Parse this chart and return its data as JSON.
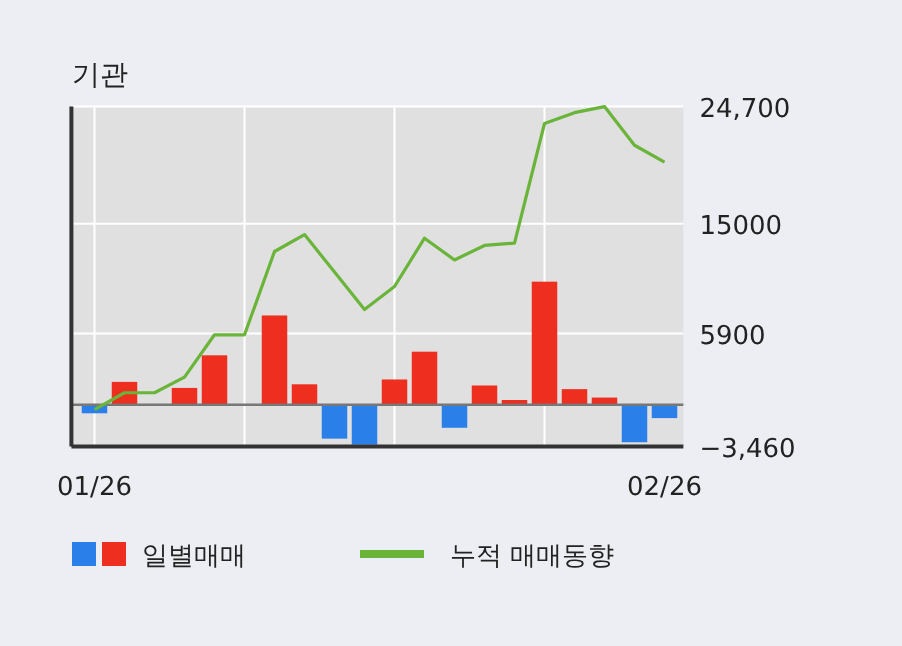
{
  "chart_data": {
    "type": "bar",
    "title": "기관",
    "categories": [
      "01/26",
      null,
      null,
      null,
      null,
      null,
      null,
      null,
      null,
      null,
      null,
      null,
      null,
      null,
      null,
      null,
      null,
      null,
      null,
      "02/26"
    ],
    "series": [
      {
        "name": "일별매매",
        "values": [
          -700,
          1900,
          0,
          1400,
          4100,
          0,
          7400,
          1700,
          -2800,
          -3300,
          2100,
          4400,
          -1900,
          1600,
          400,
          10200,
          1300,
          600,
          -3100,
          -1100
        ],
        "colors": [
          "#2a7fe8",
          "#ee2e1e",
          "#ee2e1e",
          "#ee2e1e",
          "#ee2e1e",
          "#ee2e1e",
          "#ee2e1e",
          "#ee2e1e",
          "#2a7fe8",
          "#2a7fe8",
          "#ee2e1e",
          "#ee2e1e",
          "#2a7fe8",
          "#ee2e1e",
          "#ee2e1e",
          "#ee2e1e",
          "#ee2e1e",
          "#ee2e1e",
          "#2a7fe8",
          "#2a7fe8"
        ]
      },
      {
        "type": "line",
        "name": "누적 매매동향",
        "color": "#6ab43a",
        "values": [
          -400,
          1000,
          1000,
          2300,
          5800,
          5800,
          12700,
          14100,
          11000,
          7900,
          9800,
          13800,
          12000,
          13200,
          13400,
          23300,
          24200,
          24700,
          21500,
          20100
        ]
      }
    ],
    "ylim": [
      -3460,
      24700
    ],
    "yticks": [
      {
        "value": 24700,
        "label": "24,700"
      },
      15000,
      5900,
      {
        "value": -3460,
        "label": "−3,460"
      }
    ],
    "grid": true,
    "legend": "bottom"
  }
}
